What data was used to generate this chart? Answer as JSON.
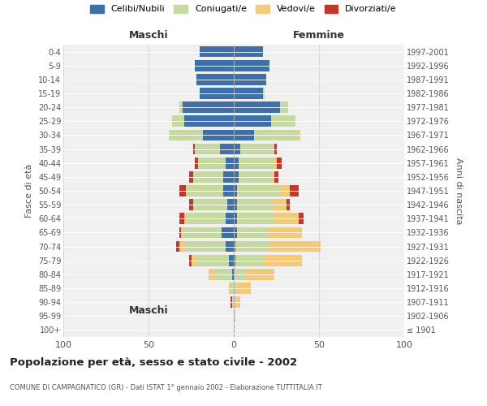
{
  "age_groups": [
    "100+",
    "95-99",
    "90-94",
    "85-89",
    "80-84",
    "75-79",
    "70-74",
    "65-69",
    "60-64",
    "55-59",
    "50-54",
    "45-49",
    "40-44",
    "35-39",
    "30-34",
    "25-29",
    "20-24",
    "15-19",
    "10-14",
    "5-9",
    "0-4"
  ],
  "birth_years": [
    "≤ 1901",
    "1902-1906",
    "1907-1911",
    "1912-1916",
    "1917-1921",
    "1922-1926",
    "1927-1931",
    "1932-1936",
    "1937-1941",
    "1942-1946",
    "1947-1951",
    "1952-1956",
    "1957-1961",
    "1962-1966",
    "1967-1971",
    "1972-1976",
    "1977-1981",
    "1982-1986",
    "1987-1991",
    "1992-1996",
    "1997-2001"
  ],
  "males": {
    "celibi": [
      0,
      0,
      0,
      0,
      1,
      3,
      5,
      7,
      5,
      4,
      6,
      6,
      5,
      8,
      18,
      29,
      30,
      20,
      22,
      23,
      20
    ],
    "coniugati": [
      0,
      0,
      1,
      2,
      10,
      19,
      24,
      23,
      23,
      20,
      22,
      18,
      16,
      15,
      20,
      7,
      2,
      0,
      0,
      0,
      0
    ],
    "vedovi": [
      0,
      0,
      0,
      1,
      4,
      3,
      3,
      1,
      1,
      0,
      0,
      0,
      0,
      0,
      0,
      0,
      0,
      0,
      0,
      0,
      0
    ],
    "divorziati": [
      0,
      0,
      1,
      0,
      0,
      1,
      2,
      1,
      3,
      2,
      4,
      2,
      2,
      1,
      0,
      0,
      0,
      0,
      0,
      0,
      0
    ]
  },
  "females": {
    "nubili": [
      0,
      0,
      0,
      0,
      0,
      1,
      1,
      2,
      2,
      2,
      2,
      3,
      3,
      4,
      12,
      22,
      27,
      17,
      19,
      21,
      17
    ],
    "coniugate": [
      0,
      0,
      1,
      2,
      6,
      17,
      20,
      18,
      22,
      21,
      25,
      20,
      21,
      20,
      26,
      14,
      5,
      1,
      0,
      0,
      0
    ],
    "vedove": [
      0,
      1,
      3,
      8,
      18,
      22,
      30,
      20,
      14,
      8,
      6,
      1,
      1,
      0,
      1,
      0,
      0,
      0,
      0,
      0,
      0
    ],
    "divorziate": [
      0,
      0,
      0,
      0,
      0,
      0,
      0,
      0,
      3,
      2,
      5,
      2,
      3,
      1,
      0,
      0,
      0,
      0,
      0,
      0,
      0
    ]
  },
  "colors": {
    "celibi_nubili": "#3d6fa8",
    "coniugati": "#c5d9a0",
    "vedovi": "#f5c97a",
    "divorziati": "#c0392b"
  },
  "title": "Popolazione per età, sesso e stato civile - 2002",
  "subtitle": "COMUNE DI CAMPAGNATICO (GR) - Dati ISTAT 1° gennaio 2002 - Elaborazione TUTTITALIA.IT",
  "xlabel_left": "Maschi",
  "xlabel_right": "Femmine",
  "ylabel_left": "Fasce di età",
  "ylabel_right": "Anni di nascita",
  "xlim": 100,
  "legend_labels": [
    "Celibi/Nubili",
    "Coniugati/e",
    "Vedovi/e",
    "Divorziati/e"
  ],
  "bg_color": "#ffffff",
  "plot_bg": "#f0f0f0"
}
